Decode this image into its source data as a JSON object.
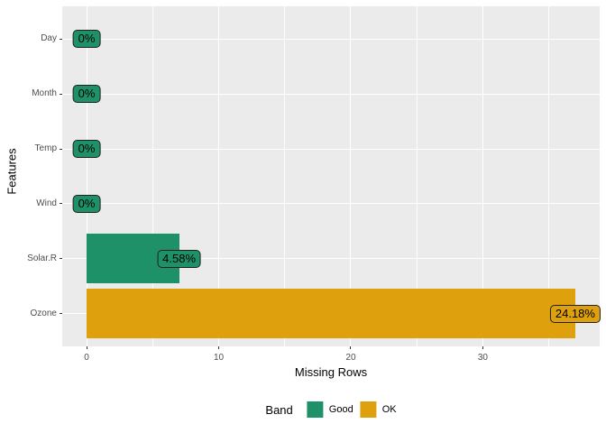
{
  "chart_data": {
    "type": "bar",
    "orientation": "horizontal",
    "xlabel": "Missing Rows",
    "ylabel": "Features",
    "rows": [
      {
        "feature": "Day",
        "missing_rows": 0,
        "pct_label": "0%",
        "band": "Good"
      },
      {
        "feature": "Month",
        "missing_rows": 0,
        "pct_label": "0%",
        "band": "Good"
      },
      {
        "feature": "Temp",
        "missing_rows": 0,
        "pct_label": "0%",
        "band": "Good"
      },
      {
        "feature": "Wind",
        "missing_rows": 0,
        "pct_label": "0%",
        "band": "Good"
      },
      {
        "feature": "Solar.R",
        "missing_rows": 7,
        "pct_label": "4.58%",
        "band": "Good"
      },
      {
        "feature": "Ozone",
        "missing_rows": 37,
        "pct_label": "24.18%",
        "band": "OK"
      }
    ],
    "x_major_ticks": [
      0,
      10,
      20,
      30
    ],
    "x_minor_ticks": [
      5,
      15,
      25,
      35
    ],
    "xlim": [
      -1.85,
      38.85
    ],
    "grid": "on",
    "legend_position": "bottom",
    "legend": {
      "title": "Band",
      "entries": [
        {
          "label": "Good",
          "color": "#1E9168"
        },
        {
          "label": "OK",
          "color": "#DFA00D"
        }
      ]
    },
    "band_colors": {
      "Good": "#1E9168",
      "OK": "#DFA00D"
    },
    "colors": {
      "panel_background": "#EBEBEB",
      "gridline": "#FFFFFF",
      "axis_text": "#4D4D4D",
      "label_border": "#1F1F1F"
    }
  }
}
